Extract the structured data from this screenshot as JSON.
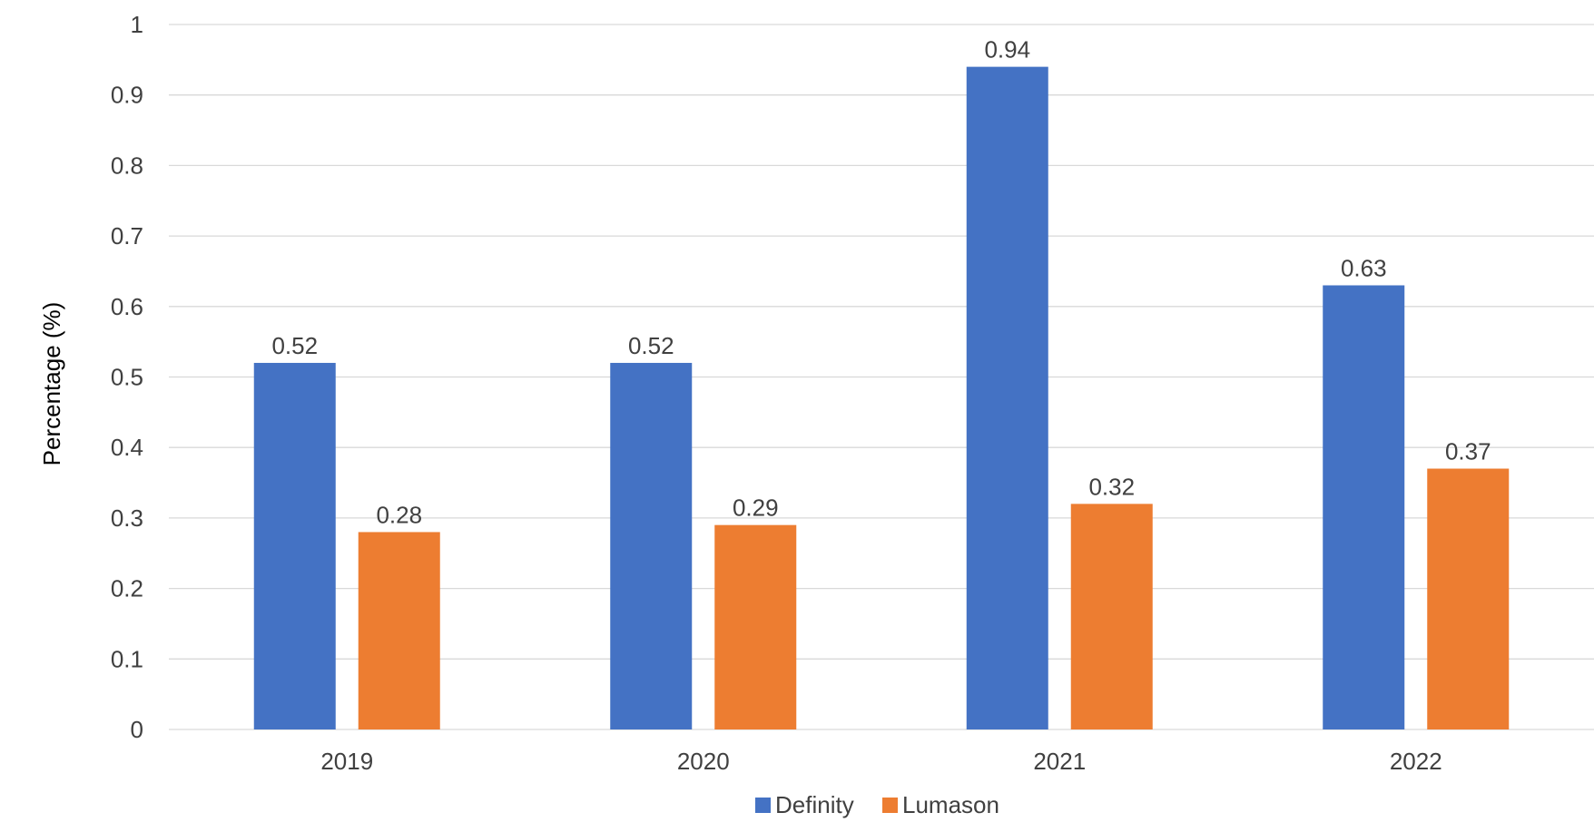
{
  "chart_data": {
    "type": "bar",
    "title": "",
    "xlabel": "",
    "ylabel": "Percentage (%)",
    "ylim": [
      0,
      1
    ],
    "yticks": [
      "0",
      "0.1",
      "0.2",
      "0.3",
      "0.4",
      "0.5",
      "0.6",
      "0.7",
      "0.8",
      "0.9",
      "1"
    ],
    "categories": [
      "2019",
      "2020",
      "2021",
      "2022"
    ],
    "series": [
      {
        "name": "Definity",
        "color": "#4472c4",
        "values": [
          0.52,
          0.52,
          0.94,
          0.63
        ]
      },
      {
        "name": "Lumason",
        "color": "#ed7d31",
        "values": [
          0.28,
          0.29,
          0.32,
          0.37
        ]
      }
    ],
    "grid": true,
    "legend": "bottom-center",
    "data_labels": true
  }
}
